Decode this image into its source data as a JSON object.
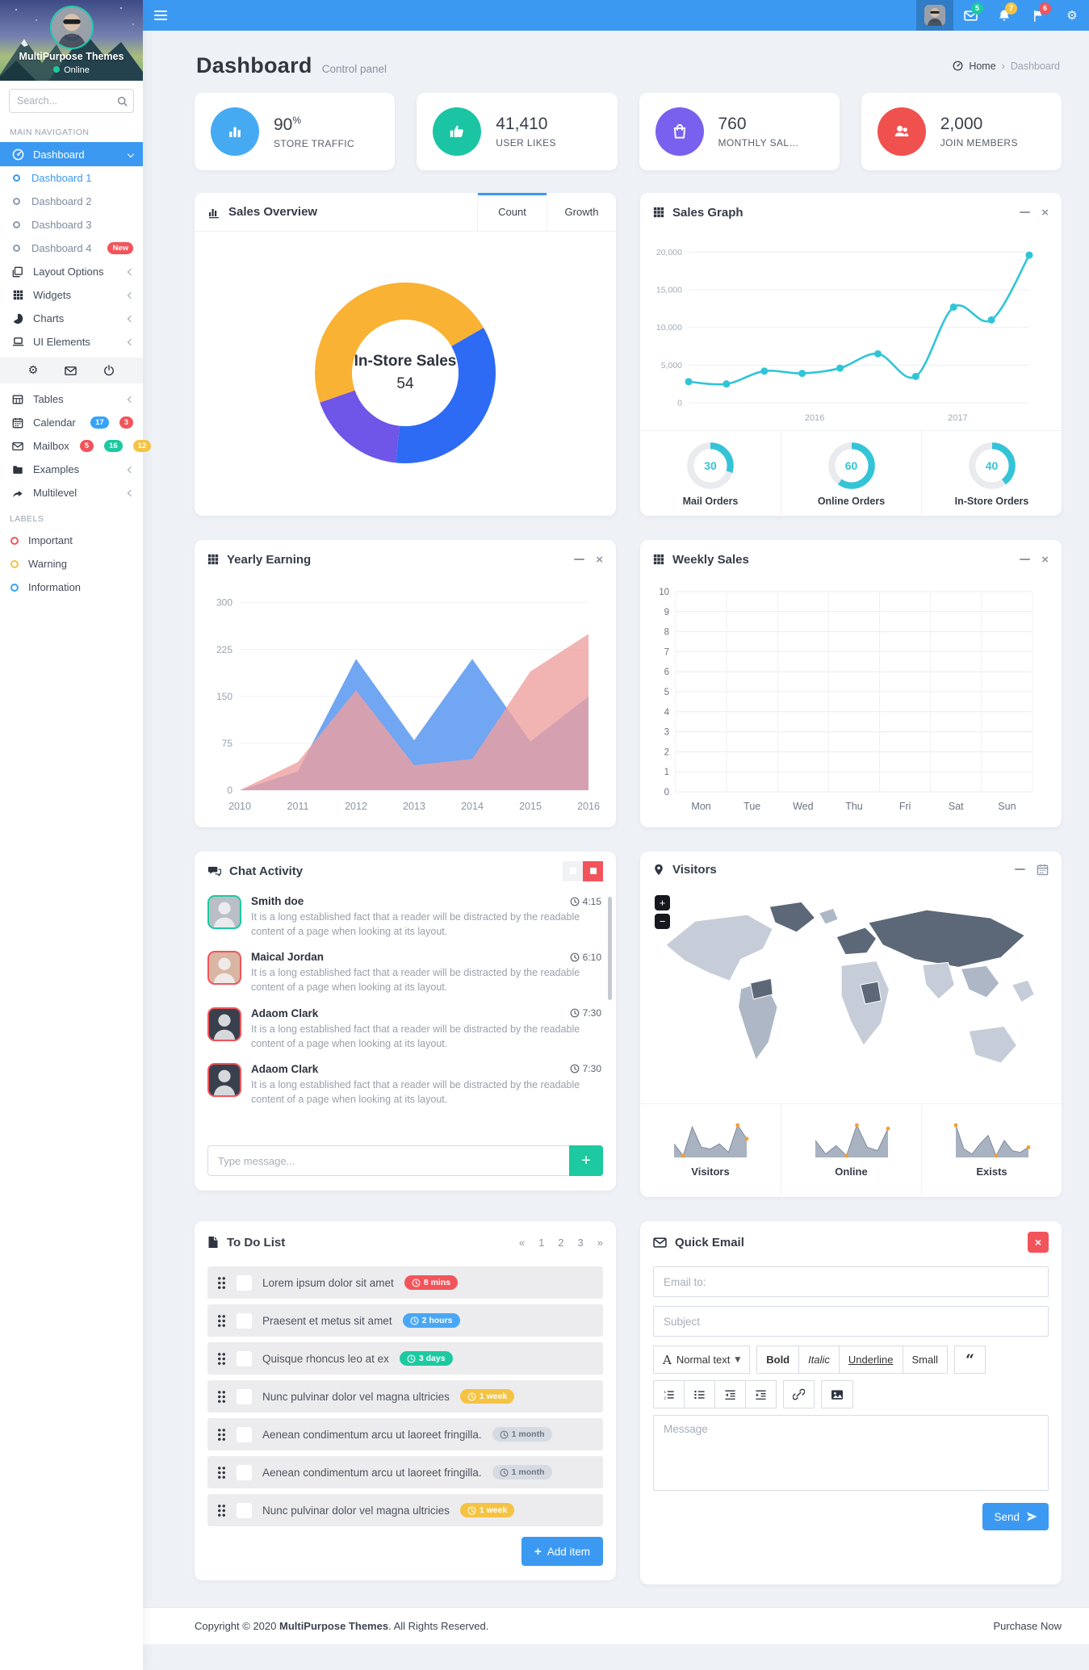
{
  "topbar": {
    "badge_mail": "5",
    "badge_bell": "7",
    "badge_flag": "6",
    "badge_mail_color": "#1dc9a0",
    "badge_bell_color": "#f5c343",
    "badge_flag_color": "#f2545b"
  },
  "sidebar": {
    "brand": "MultiPurpose Themes",
    "status": "Online",
    "search_placeholder": "Search...",
    "nav_label": "MAIN NAVIGATION",
    "dashboard": "Dashboard",
    "sub1": "Dashboard 1",
    "sub2": "Dashboard 2",
    "sub3": "Dashboard 3",
    "sub4": "Dashboard 4",
    "sub4_badge": "New",
    "layout": "Layout Options",
    "widgets": "Widgets",
    "charts": "Charts",
    "ui": "UI Elements",
    "tables": "Tables",
    "calendar": "Calendar",
    "cal_badges": [
      "17",
      "3"
    ],
    "mailbox": "Mailbox",
    "mail_badges": [
      "5",
      "16",
      "12"
    ],
    "examples": "Examples",
    "multilevel": "Multilevel",
    "labels_title": "LABELS",
    "label_important": "Important",
    "label_warning": "Warning",
    "label_information": "Information"
  },
  "page": {
    "title": "Dashboard",
    "subtitle": "Control panel",
    "breadcrumb": {
      "home": "Home",
      "current": "Dashboard"
    }
  },
  "stats": [
    {
      "value": "90",
      "suffix": "%",
      "label": "STORE TRAFFIC",
      "color": "#45aaf2"
    },
    {
      "value": "41,410",
      "suffix": "",
      "label": "USER LIKES",
      "color": "#1bc5a3"
    },
    {
      "value": "760",
      "suffix": "",
      "label": "MONTHLY SAL…",
      "color": "#7a60ee"
    },
    {
      "value": "2,000",
      "suffix": "",
      "label": "JOIN MEMBERS",
      "color": "#f0504e"
    }
  ],
  "panels": {
    "sales_overview": {
      "title": "Sales Overview",
      "tab_count": "Count",
      "tab_growth": "Growth"
    },
    "sales_graph": {
      "title": "Sales Graph"
    },
    "yearly_earning": {
      "title": "Yearly Earning"
    },
    "weekly_sales": {
      "title": "Weekly Sales"
    },
    "chat": {
      "title": "Chat Activity",
      "input_placeholder": "Type message...",
      "messages": [
        {
          "name": "Smith doe",
          "time": "4:15",
          "text": "It is a long established fact that a reader will be distracted by the readable content of a page when looking at its layout.",
          "avatar_style": "border-color:#1dc9a0;background:#b9bec7"
        },
        {
          "name": "Maical Jordan",
          "time": "6:10",
          "text": "It is a long established fact that a reader will be distracted by the readable content of a page when looking at its layout.",
          "avatar_style": "border-color:#f2545b;background:#d9b6a3"
        },
        {
          "name": "Adaom Clark",
          "time": "7:30",
          "text": "It is a long established fact that a reader will be distracted by the readable content of a page when looking at its layout.",
          "avatar_style": "border-color:#f2545b;background:#39404d"
        },
        {
          "name": "Adaom Clark",
          "time": "7:30",
          "text": "It is a long established fact that a reader will be distracted by the readable content of a page when looking at its layout.",
          "avatar_style": "border-color:#f2545b;background:#39404d"
        }
      ]
    },
    "visitors": {
      "title": "Visitors",
      "zoom_in": "+",
      "zoom_out": "−"
    },
    "todo": {
      "title": "To Do List",
      "pagination": [
        "«",
        "1",
        "2",
        "3",
        "»"
      ],
      "add_label": "Add item",
      "items": [
        {
          "text": "Lorem ipsum dolor sit amet",
          "badge": "8 mins",
          "badge_style": "background:#f2545b"
        },
        {
          "text": "Praesent et metus sit amet",
          "badge": "2 hours",
          "badge_style": "background:#49a7f5"
        },
        {
          "text": "Quisque rhoncus leo at ex",
          "badge": "3 days",
          "badge_style": "background:#1dc9a0"
        },
        {
          "text": "Nunc pulvinar dolor vel magna ultricies",
          "badge": "1 week",
          "badge_style": "background:#f5c343"
        },
        {
          "text": "Aenean condimentum arcu ut laoreet fringilla.",
          "badge": "1 month",
          "badge_style": "background:#d6dae2;color:#6d7582"
        },
        {
          "text": "Aenean condimentum arcu ut laoreet fringilla.",
          "badge": "1 month",
          "badge_style": "background:#d6dae2;color:#6d7582"
        },
        {
          "text": "Nunc pulvinar dolor vel magna ultricies",
          "badge": "1 week",
          "badge_style": "background:#f5c343"
        }
      ]
    },
    "email": {
      "title": "Quick Email",
      "to_placeholder": "Email to:",
      "subject_placeholder": "Subject",
      "message_placeholder": "Message",
      "send_label": "Send",
      "toolbar": {
        "style_label": "Normal text",
        "bold": "Bold",
        "italic": "Italic",
        "underline": "Underline",
        "small": "Small"
      }
    }
  },
  "chart_data": {
    "sales_overview": {
      "type": "pie",
      "center_label": "In-Store Sales",
      "center_value": "54",
      "start_angle_deg_from_top": 60,
      "slices": [
        {
          "value": 35,
          "color": "#2d6bf4"
        },
        {
          "value": 18,
          "color": "#6f55e8"
        },
        {
          "value": 47,
          "color": "#f9b234"
        }
      ]
    },
    "sales_graph": {
      "type": "line",
      "color": "#2fc5d8",
      "values": [
        2800,
        2500,
        4200,
        3900,
        4600,
        6500,
        3500,
        12700,
        11000,
        19600
      ],
      "ylim": [
        0,
        21000
      ],
      "yticks": [
        0,
        5000,
        10000,
        15000,
        20000
      ],
      "ytick_labels": [
        "0",
        "5,000",
        "10,000",
        "15,000",
        "20,000"
      ],
      "xlabels": [
        {
          "text": "2016",
          "pos": 0.37
        },
        {
          "text": "2017",
          "pos": 0.79
        }
      ]
    },
    "gauges": {
      "type": "donut-gauge",
      "color": "#35c4d7",
      "track": "#e9ebee",
      "items": [
        {
          "value": 30,
          "label": "Mail Orders"
        },
        {
          "value": 60,
          "label": "Online Orders"
        },
        {
          "value": 40,
          "label": "In-Store Orders"
        }
      ]
    },
    "yearly_earning": {
      "type": "area",
      "categories": [
        "2010",
        "2011",
        "2012",
        "2013",
        "2014",
        "2015",
        "2016"
      ],
      "yticks": [
        0,
        75,
        150,
        225,
        300
      ],
      "ylim": [
        0,
        310
      ],
      "series": [
        {
          "name": "series-blue",
          "color": "#69a1f2",
          "opacity": 0.95,
          "values": [
            0,
            30,
            210,
            80,
            210,
            78,
            150
          ]
        },
        {
          "name": "series-pink",
          "color": "#efa0a0",
          "opacity": 0.8,
          "values": [
            0,
            45,
            160,
            40,
            50,
            190,
            250
          ]
        }
      ]
    },
    "weekly_sales": {
      "type": "bar",
      "categories": [
        "Mon",
        "Tue",
        "Wed",
        "Thu",
        "Fri",
        "Sat",
        "Sun"
      ],
      "values": [],
      "yticks": [
        0,
        1,
        2,
        3,
        4,
        5,
        6,
        7,
        8,
        9,
        10
      ],
      "ylim": [
        0,
        10
      ]
    },
    "visitor_sparklines": {
      "type": "area",
      "color": "#a9b2c1",
      "dot_color": "#f59d33",
      "items": [
        {
          "label": "Visitors",
          "values": [
            8,
            1,
            18,
            6,
            5,
            8,
            3,
            19,
            11
          ]
        },
        {
          "label": "Online",
          "values": [
            10,
            2,
            7,
            1,
            19,
            6,
            4,
            17
          ]
        },
        {
          "label": "Exists",
          "values": [
            19,
            5,
            2,
            8,
            13,
            1,
            10,
            4,
            3,
            6
          ]
        }
      ]
    }
  },
  "footer": {
    "copyright_prefix": "Copyright © 2020 ",
    "brand": "MultiPurpose Themes",
    "copyright_suffix": ". All Rights Reserved.",
    "purchase": "Purchase Now"
  }
}
